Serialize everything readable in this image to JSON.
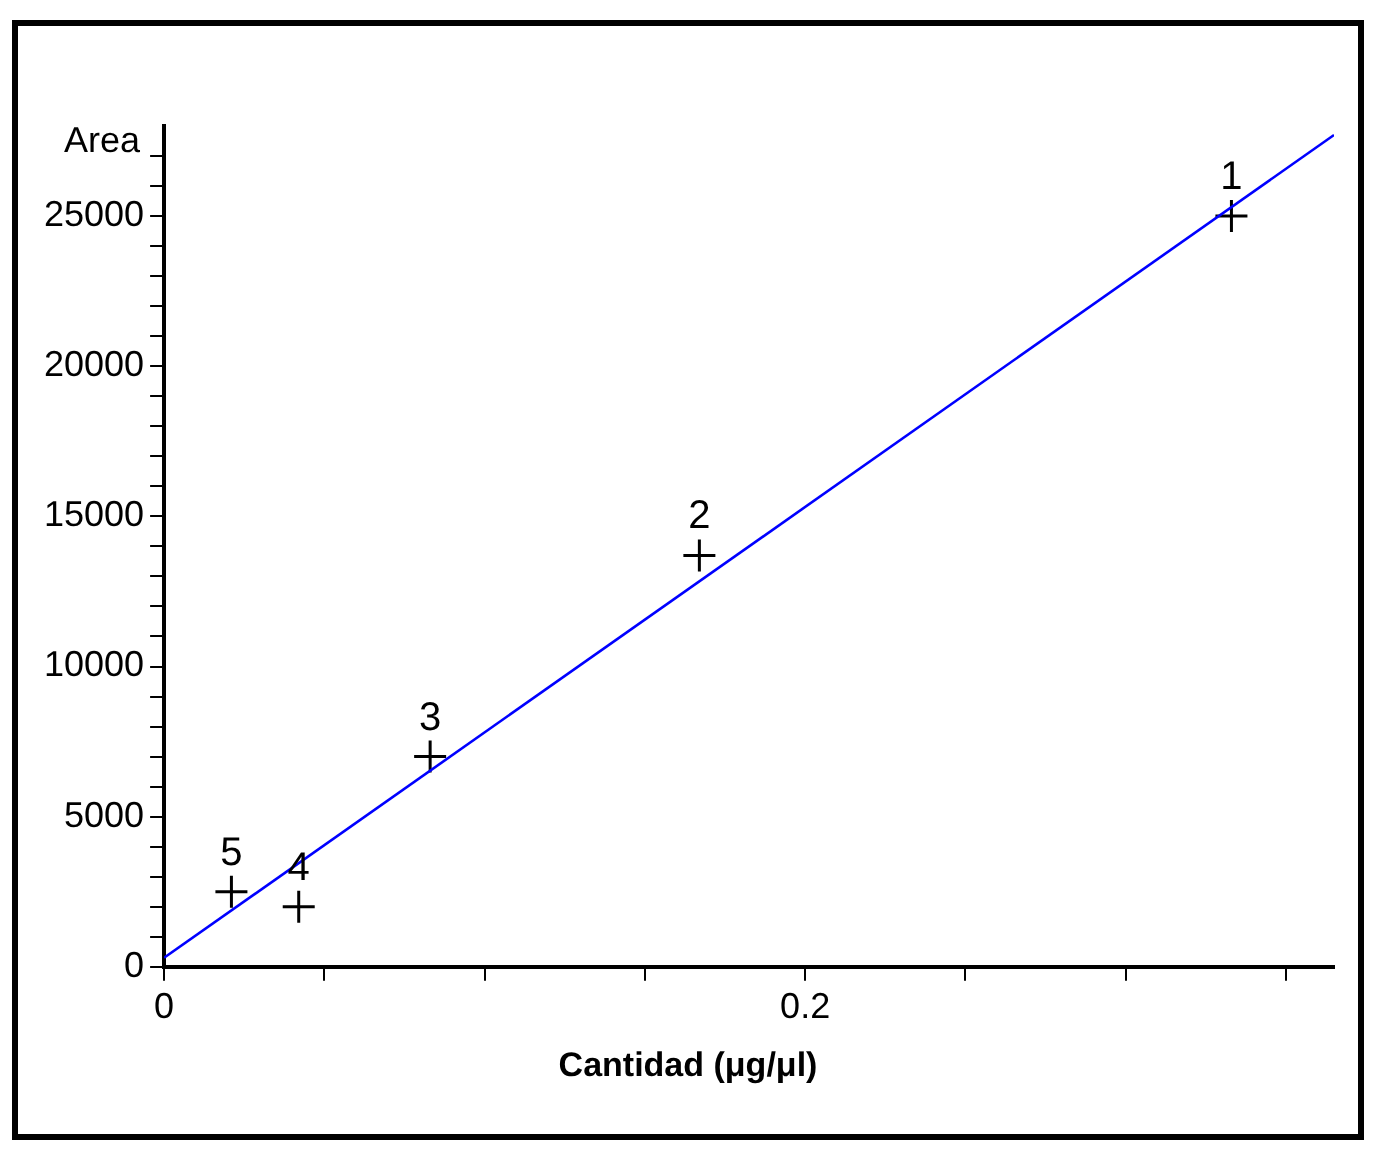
{
  "chart_data": {
    "type": "scatter",
    "xlabel": "Cantidad (μg/μl)",
    "ylabel": "Area",
    "xlim": [
      0,
      0.365
    ],
    "ylim": [
      0,
      28000
    ],
    "xticks": [
      0,
      {
        "value": 0.05,
        "label": null
      },
      {
        "value": 0.1,
        "label": null
      },
      {
        "value": 0.15,
        "label": null
      },
      0.2,
      {
        "value": 0.25,
        "label": null
      },
      {
        "value": 0.3,
        "label": null
      },
      {
        "value": 0.35,
        "label": null
      }
    ],
    "yticks": [
      0,
      {
        "value": 1000,
        "label": null
      },
      {
        "value": 2000,
        "label": null
      },
      {
        "value": 3000,
        "label": null
      },
      {
        "value": 4000,
        "label": null
      },
      5000,
      {
        "value": 6000,
        "label": null
      },
      {
        "value": 7000,
        "label": null
      },
      {
        "value": 8000,
        "label": null
      },
      {
        "value": 9000,
        "label": null
      },
      10000,
      {
        "value": 11000,
        "label": null
      },
      {
        "value": 12000,
        "label": null
      },
      {
        "value": 13000,
        "label": null
      },
      {
        "value": 14000,
        "label": null
      },
      15000,
      {
        "value": 16000,
        "label": null
      },
      {
        "value": 17000,
        "label": null
      },
      {
        "value": 18000,
        "label": null
      },
      {
        "value": 19000,
        "label": null
      },
      20000,
      {
        "value": 21000,
        "label": null
      },
      {
        "value": 22000,
        "label": null
      },
      {
        "value": 23000,
        "label": null
      },
      {
        "value": 24000,
        "label": null
      },
      25000,
      {
        "value": 26000,
        "label": null
      },
      {
        "value": 27000,
        "label": null
      }
    ],
    "grid": false,
    "legend": false,
    "marker": "cross",
    "series": [
      {
        "type": "scatter",
        "color": "#000000",
        "x": [
          0.333,
          0.167,
          0.083,
          0.042,
          0.021
        ],
        "values": [
          25000,
          13700,
          7000,
          2000,
          2500
        ]
      },
      {
        "type": "line",
        "color": "#0000ff",
        "marker": "none",
        "x": [
          0,
          0.365
        ],
        "values": [
          300,
          27700
        ]
      }
    ],
    "annotations": [
      {
        "text": "1",
        "x": 0.333,
        "y": 25000
      },
      {
        "text": "2",
        "x": 0.167,
        "y": 13700
      },
      {
        "text": "3",
        "x": 0.083,
        "y": 7000
      },
      {
        "text": "4",
        "x": 0.042,
        "y": 2000
      },
      {
        "text": "5",
        "x": 0.021,
        "y": 2500
      }
    ]
  }
}
